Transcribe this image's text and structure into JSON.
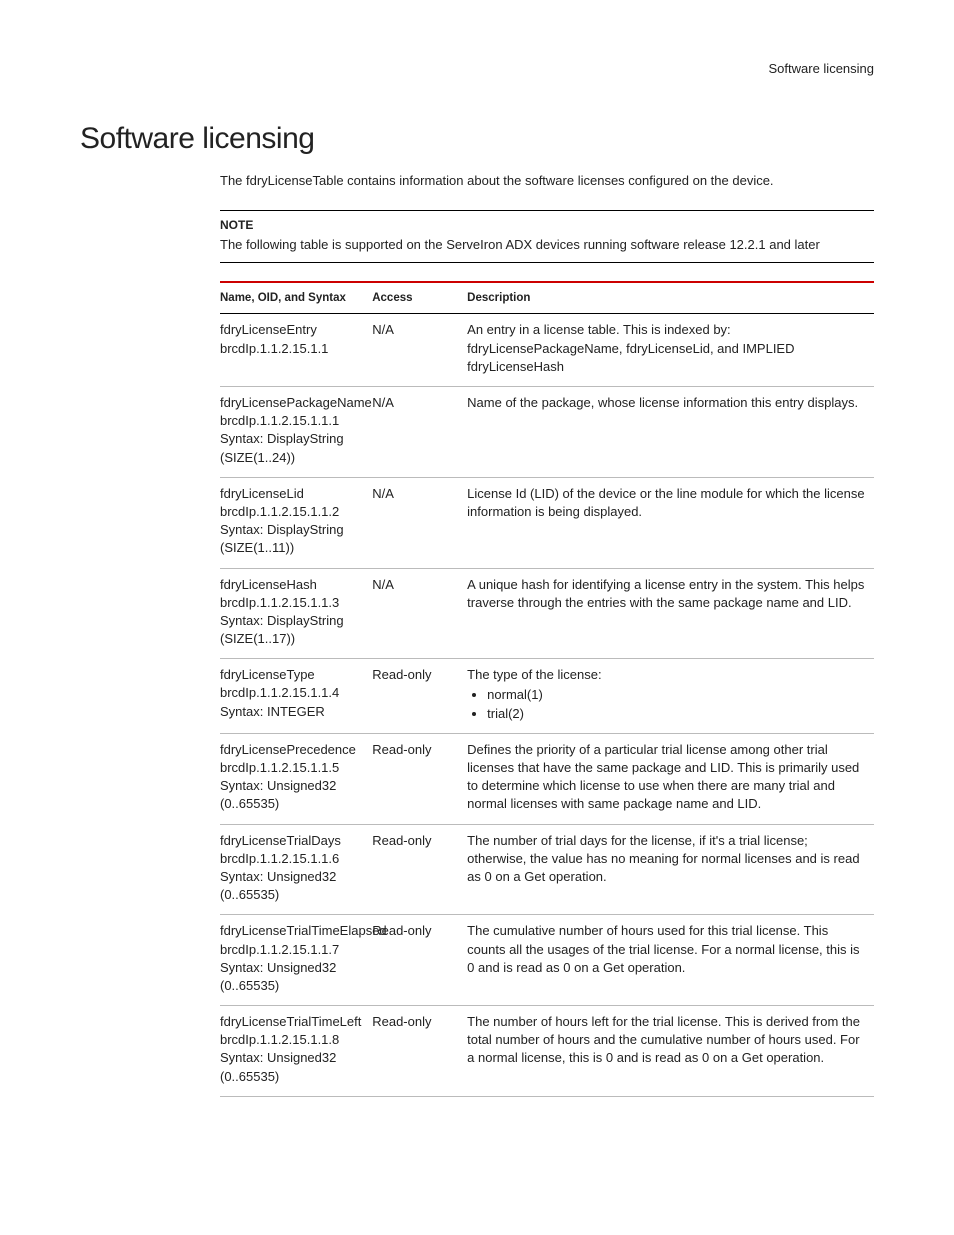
{
  "header_label": "Software licensing",
  "title": "Software licensing",
  "intro": "The fdryLicenseTable contains information about the software licenses configured on the device.",
  "note": {
    "label": "NOTE",
    "text": "The following table is supported on the ServeIron ADX devices running software release 12.2.1 and later"
  },
  "table": {
    "columns": [
      "Name, OID, and Syntax",
      "Access",
      "Description"
    ],
    "rows": [
      {
        "name_lines": [
          "fdryLicenseEntry",
          "brcdIp.1.1.2.15.1.1"
        ],
        "access": "N/A",
        "desc_lines": [
          "An entry in a license table. This is indexed by: fdryLicensePackageName, fdryLicenseLid, and IMPLIED fdryLicenseHash"
        ]
      },
      {
        "name_lines": [
          "fdryLicensePackageName",
          "brcdIp.1.1.2.15.1.1.1",
          "Syntax: DisplayString (SIZE(1..24))"
        ],
        "access": "N/A",
        "desc_lines": [
          "Name of the package, whose license information this entry displays."
        ]
      },
      {
        "name_lines": [
          "fdryLicenseLid",
          "brcdIp.1.1.2.15.1.1.2",
          "Syntax: DisplayString (SIZE(1..11))"
        ],
        "access": "N/A",
        "desc_lines": [
          "License Id (LID) of the device or the line module for which the license information is being displayed."
        ]
      },
      {
        "name_lines": [
          "fdryLicenseHash",
          "brcdIp.1.1.2.15.1.1.3",
          "Syntax: DisplayString (SIZE(1..17))"
        ],
        "access": "N/A",
        "desc_lines": [
          "A unique hash for identifying a license entry in the system. This helps traverse through the entries with the same package name and LID."
        ]
      },
      {
        "name_lines": [
          "fdryLicenseType",
          "brcdIp.1.1.2.15.1.1.4",
          "Syntax: INTEGER"
        ],
        "access": "Read-only",
        "desc_lines": [
          "The type of the license:"
        ],
        "desc_list": [
          "normal(1)",
          "trial(2)"
        ]
      },
      {
        "name_lines": [
          "fdryLicensePrecedence",
          "brcdIp.1.1.2.15.1.1.5",
          "Syntax: Unsigned32 (0..65535)"
        ],
        "access": "Read-only",
        "desc_lines": [
          "Defines the priority of a particular trial license among other trial licenses that have the same package and LID. This is primarily used to determine which license to use when there are many trial and normal licenses with same package name and LID."
        ]
      },
      {
        "name_lines": [
          "fdryLicenseTrialDays",
          "brcdIp.1.1.2.15.1.1.6",
          "Syntax: Unsigned32 (0..65535)"
        ],
        "access": "Read-only",
        "desc_lines": [
          "The number of trial days for the license, if it's a trial license; otherwise, the value has no meaning for normal licenses and is read as 0 on a Get operation."
        ]
      },
      {
        "name_lines": [
          "fdryLicenseTrialTimeElapsed",
          "brcdIp.1.1.2.15.1.1.7",
          "Syntax: Unsigned32 (0..65535)"
        ],
        "access": "Read-only",
        "desc_lines": [
          "The cumulative number of hours used for this trial license. This counts all the usages of the trial license. For a normal license, this is 0 and is read as 0 on a Get operation."
        ]
      },
      {
        "name_lines": [
          "fdryLicenseTrialTimeLeft",
          "brcdIp.1.1.2.15.1.1.8",
          "Syntax: Unsigned32 (0..65535)"
        ],
        "access": "Read-only",
        "desc_lines": [
          "The number of hours left for the trial license. This is derived from the total number of hours and the cumulative number of hours used. For a normal license, this is 0 and is read as 0 on a Get operation."
        ]
      }
    ]
  }
}
